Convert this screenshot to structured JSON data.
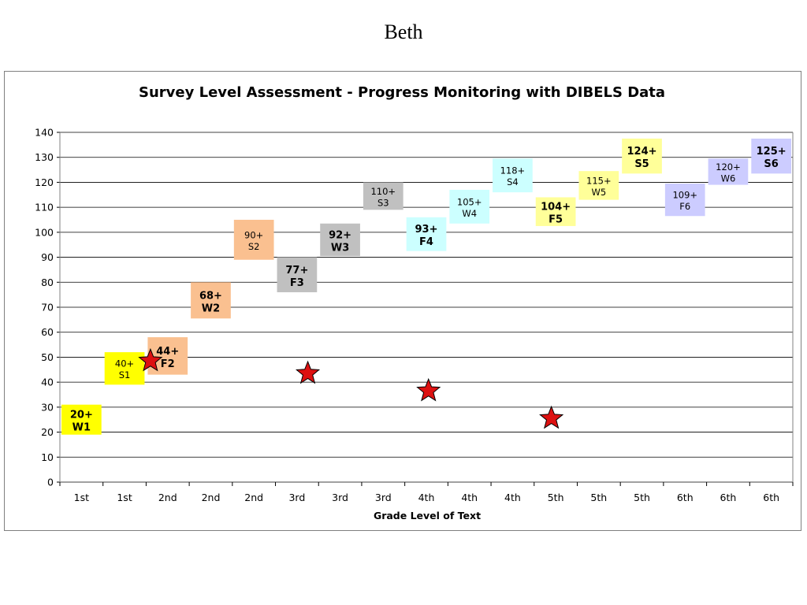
{
  "slide_title": "Beth",
  "chart_data": {
    "type": "scatter",
    "title": "Survey Level Assessment - Progress Monitoring with DIBELS Data",
    "xlabel": "Grade Level of Text",
    "ylabel": "",
    "ylim": [
      0,
      140
    ],
    "yticks": [
      0,
      10,
      20,
      30,
      40,
      50,
      60,
      70,
      80,
      90,
      100,
      110,
      120,
      130,
      140
    ],
    "grid": true,
    "legend": "none",
    "categories": [
      "1st",
      "1st",
      "2nd",
      "2nd",
      "2nd",
      "3rd",
      "3rd",
      "3rd",
      "4th",
      "4th",
      "4th",
      "5th",
      "5th",
      "5th",
      "6th",
      "6th",
      "6th"
    ],
    "benchmarks": [
      {
        "index": 0,
        "line1": "20+",
        "line2": "W1",
        "low": 19,
        "high": 31,
        "color": "#ffff00",
        "bold": true
      },
      {
        "index": 1,
        "line1": "40+",
        "line2": "S1",
        "low": 39,
        "high": 52,
        "color": "#ffff00",
        "bold": false
      },
      {
        "index": 2,
        "line1": "44+",
        "line2": "F2",
        "low": 43,
        "high": 58,
        "color": "#fac090",
        "bold": true
      },
      {
        "index": 3,
        "line1": "68+",
        "line2": "W2",
        "low": 65.5,
        "high": 80,
        "color": "#fac090",
        "bold": true
      },
      {
        "index": 4,
        "line1": "90+",
        "line2": "S2",
        "low": 89,
        "high": 105,
        "color": "#fac090",
        "bold": false
      },
      {
        "index": 5,
        "line1": "77+",
        "line2": "F3",
        "low": 76,
        "high": 90,
        "color": "#c0c0c0",
        "bold": true
      },
      {
        "index": 6,
        "line1": "92+",
        "line2": "W3",
        "low": 90.5,
        "high": 103.5,
        "color": "#c0c0c0",
        "bold": true
      },
      {
        "index": 7,
        "line1": "110+",
        "line2": "S3",
        "low": 109,
        "high": 120,
        "color": "#c0c0c0",
        "bold": false
      },
      {
        "index": 8,
        "line1": "93+",
        "line2": "F4",
        "low": 92.5,
        "high": 106,
        "color": "#ccffff",
        "bold": true
      },
      {
        "index": 9,
        "line1": "105+",
        "line2": "W4",
        "low": 103.5,
        "high": 117,
        "color": "#ccffff",
        "bold": false
      },
      {
        "index": 10,
        "line1": "118+",
        "line2": "S4",
        "low": 116,
        "high": 129.5,
        "color": "#ccffff",
        "bold": false
      },
      {
        "index": 11,
        "line1": "104+",
        "line2": "F5",
        "low": 102.5,
        "high": 114,
        "color": "#ffff99",
        "bold": true
      },
      {
        "index": 12,
        "line1": "115+",
        "line2": "W5",
        "low": 113,
        "high": 124.5,
        "color": "#ffff99",
        "bold": false
      },
      {
        "index": 13,
        "line1": "124+",
        "line2": "S5",
        "low": 123.5,
        "high": 137.5,
        "color": "#ffff99",
        "bold": true
      },
      {
        "index": 14,
        "line1": "109+",
        "line2": "F6",
        "low": 106.5,
        "high": 119.5,
        "color": "#ccccff",
        "bold": false
      },
      {
        "index": 15,
        "line1": "120+",
        "line2": "W6",
        "low": 119,
        "high": 129.5,
        "color": "#ccccff",
        "bold": false
      },
      {
        "index": 16,
        "line1": "125+",
        "line2": "S6",
        "low": 123.5,
        "high": 137.5,
        "color": "#ccccff",
        "bold": true
      }
    ],
    "series": [
      {
        "marker": "star",
        "color": "#dd1111",
        "points": [
          {
            "x_index": 2.1,
            "y": 48.5
          },
          {
            "x_index": 5.75,
            "y": 43.5
          },
          {
            "x_index": 8.55,
            "y": 36.5
          },
          {
            "x_index": 11.4,
            "y": 25.5
          }
        ]
      }
    ]
  }
}
